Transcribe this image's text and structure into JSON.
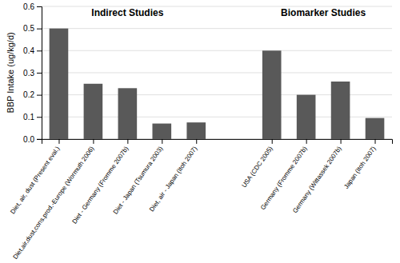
{
  "chart_data": {
    "type": "bar",
    "categories": [
      "Diet, air, dust (Present eval.)",
      "Diet,air,dust,cons.prod.-Europe (Wormuth 2006)",
      "Diet - Germany (Fromme 2007b)",
      "Diet - Japan (Tsumura 2003)",
      "Diet, air - Japan (Itoh 2007)",
      "USA (CDC 2005)",
      "Germany (Fromme 2007b)",
      "Germany (Wittassek 2007b)",
      "Japan (Itoh 2007)"
    ],
    "values": [
      0.5,
      0.25,
      0.23,
      0.07,
      0.075,
      0.4,
      0.2,
      0.26,
      0.095
    ],
    "color": "#595959",
    "ylabel": "BBP Intake (ug/kg/d)",
    "ylim": [
      0,
      0.6
    ],
    "yticks": [
      {
        "value": 0,
        "label": "0.0"
      },
      0.1,
      0.2,
      0.3,
      0.4,
      0.5,
      0.6
    ],
    "grid": true,
    "annotations": [
      "Indirect Studies",
      "Biomarker Studies"
    ]
  }
}
